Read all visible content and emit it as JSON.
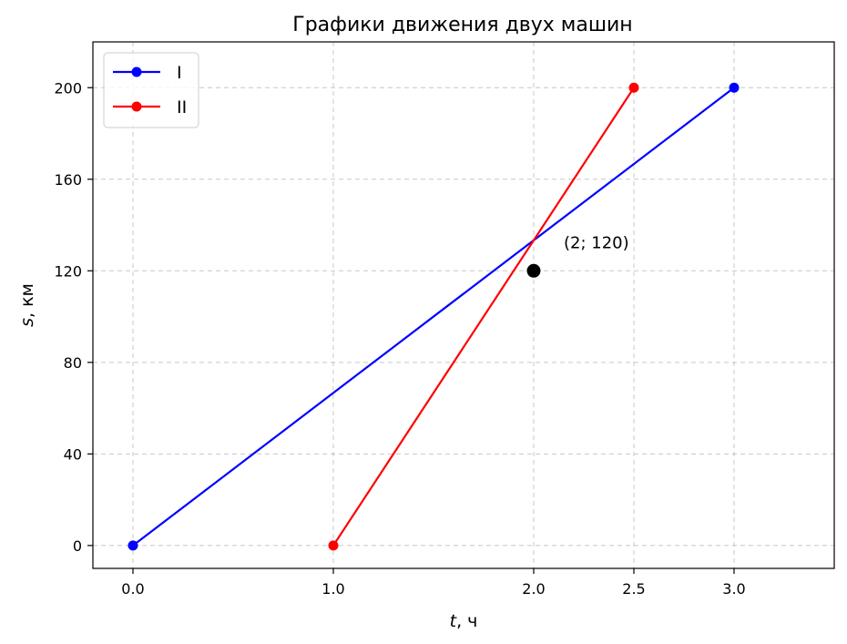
{
  "chart_data": {
    "type": "line",
    "title": "Графики движения двух машин",
    "xlabel_var": "t",
    "xlabel_unit": ", ч",
    "ylabel_var": "s",
    "ylabel_unit": ", км",
    "xlim": [
      -0.2,
      3.5
    ],
    "ylim": [
      -10,
      220
    ],
    "xticks": [
      0.0,
      1.0,
      2.0,
      2.5,
      3.0
    ],
    "xtick_labels": [
      "0.0",
      "1.0",
      "2.0",
      "2.5",
      "3.0"
    ],
    "yticks": [
      0,
      40,
      80,
      120,
      160,
      200
    ],
    "ytick_labels": [
      "0",
      "40",
      "80",
      "120",
      "160",
      "200"
    ],
    "grid": true,
    "legend_position": "top-left",
    "series": [
      {
        "name": "I",
        "color": "#0000ff",
        "x": [
          0,
          3
        ],
        "y": [
          0,
          200
        ]
      },
      {
        "name": "II",
        "color": "#ff0000",
        "x": [
          1,
          2.5
        ],
        "y": [
          0,
          200
        ]
      }
    ],
    "annotation": {
      "x": 2,
      "y": 120,
      "text": "(2; 120)",
      "color": "#000000"
    }
  }
}
